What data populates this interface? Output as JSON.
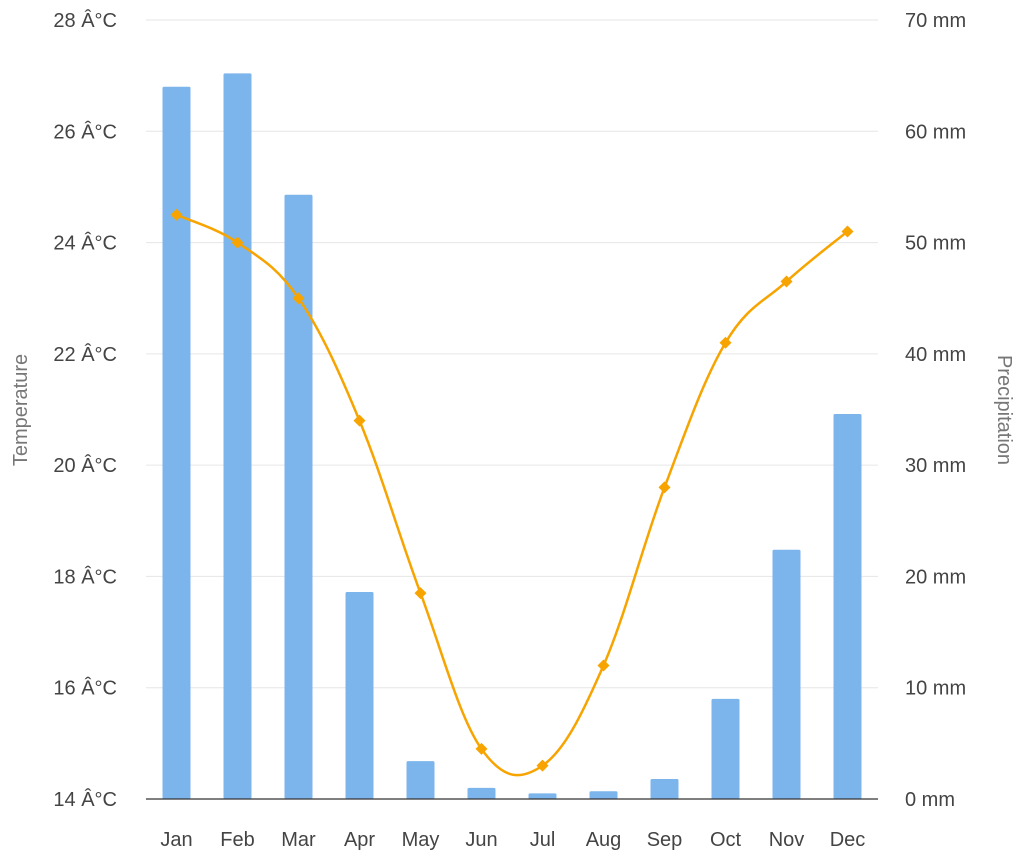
{
  "chart_data": {
    "type": "bar",
    "categories": [
      "Jan",
      "Feb",
      "Mar",
      "Apr",
      "May",
      "Jun",
      "Jul",
      "Aug",
      "Sep",
      "Oct",
      "Nov",
      "Dec"
    ],
    "series": [
      {
        "type": "bar",
        "axis": "right",
        "color": "#7cb5ec",
        "values": [
          64,
          65.2,
          54.3,
          18.6,
          3.4,
          1,
          0.5,
          0.7,
          1.8,
          9,
          22.4,
          34.6
        ]
      },
      {
        "type": "line",
        "axis": "left",
        "color": "#f7a400",
        "marker": "diamond",
        "smooth": true,
        "values": [
          24.5,
          24.0,
          23.0,
          20.8,
          17.7,
          14.9,
          14.6,
          16.4,
          19.6,
          22.2,
          23.3,
          24.2
        ]
      }
    ],
    "y_left": {
      "label": "Temperature",
      "min": 14,
      "max": 28,
      "step": 2,
      "ticks": [
        "28 Â°C",
        "26 Â°C",
        "24 Â°C",
        "22 Â°C",
        "20 Â°C",
        "18 Â°C",
        "16 Â°C",
        "14 Â°C"
      ]
    },
    "y_right": {
      "label": "Precipitation",
      "min": 0,
      "max": 70,
      "step": 10,
      "ticks": [
        "70 mm",
        "60 mm",
        "50 mm",
        "40 mm",
        "30 mm",
        "20 mm",
        "10 mm",
        "0 mm"
      ]
    },
    "grid": true,
    "legend": false
  }
}
